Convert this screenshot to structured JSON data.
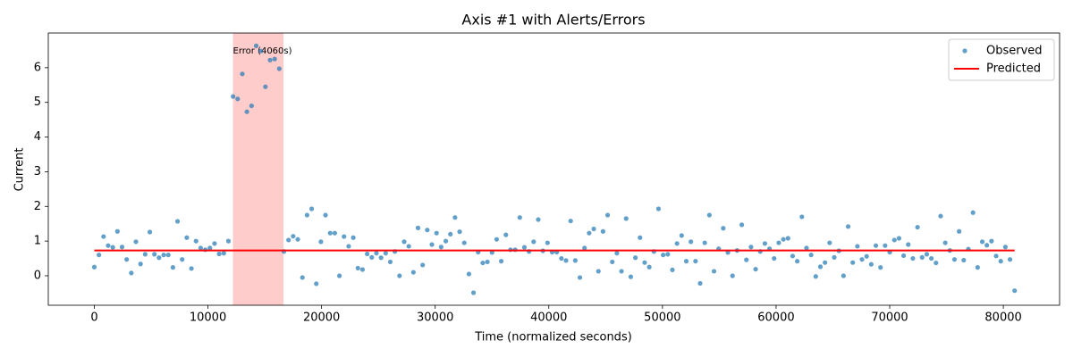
{
  "chart_data": {
    "type": "scatter-line",
    "title": "Axis #1 with Alerts/Errors",
    "x_label": "Time (normalized seconds)",
    "y_label": "Current",
    "xlim": [
      -4050,
      84950
    ],
    "ylim": [
      -0.85,
      7.0
    ],
    "xticks": [
      0,
      10000,
      20000,
      30000,
      40000,
      50000,
      60000,
      70000,
      80000
    ],
    "yticks": [
      0,
      1,
      2,
      3,
      4,
      5,
      6
    ],
    "grid": false,
    "legend": "upper right",
    "error_region": {
      "x": [
        12200,
        16650
      ],
      "label": "Error (4060s)",
      "color": "#ff0000"
    },
    "series": [
      {
        "name": "Observed",
        "kind": "scatter",
        "color": "#1f77b4",
        "x": [
          0,
          407,
          814,
          1221,
          1628,
          2035,
          2442,
          2849,
          3256,
          3663,
          4070,
          4477,
          4884,
          5291,
          5698,
          6105,
          6512,
          6919,
          7326,
          7733,
          8140,
          8547,
          8954,
          9361,
          9768,
          10175,
          10582,
          10989,
          11396,
          11803,
          12210,
          12617,
          13024,
          13431,
          13838,
          14245,
          14652,
          15059,
          15466,
          15873,
          16280,
          16687,
          17094,
          17501,
          17908,
          18315,
          18722,
          19129,
          19536,
          19943,
          20350,
          20757,
          21164,
          21571,
          21978,
          22385,
          22792,
          23199,
          23606,
          24013,
          24420,
          24827,
          25234,
          25641,
          26048,
          26455,
          26862,
          27269,
          27676,
          28083,
          28490,
          28897,
          29304,
          29711,
          30118,
          30525,
          30932,
          31339,
          31746,
          32153,
          32560,
          32967,
          33374,
          33781,
          34188,
          34595,
          35002,
          35409,
          35816,
          36223,
          36630,
          37037,
          37444,
          37851,
          38258,
          38665,
          39072,
          39479,
          39886,
          40293,
          40700,
          41107,
          41514,
          41921,
          42328,
          42735,
          43142,
          43549,
          43956,
          44363,
          44770,
          45177,
          45584,
          45991,
          46398,
          46805,
          47212,
          47619,
          48026,
          48433,
          48840,
          49247,
          49654,
          50061,
          50468,
          50875,
          51282,
          51689,
          52096,
          52503,
          52910,
          53317,
          53724,
          54131,
          54538,
          54945,
          55352,
          55759,
          56166,
          56573,
          56980,
          57387,
          57794,
          58201,
          58608,
          59015,
          59422,
          59829,
          60236,
          60643,
          61050,
          61457,
          61864,
          62271,
          62678,
          63085,
          63492,
          63899,
          64306,
          64713,
          65120,
          65527,
          65934,
          66341,
          66748,
          67155,
          67562,
          67969,
          68376,
          68783,
          69190,
          69597,
          70004,
          70411,
          70818,
          71225,
          71632,
          72039,
          72446,
          72853,
          73260,
          73667,
          74074,
          74481,
          74888,
          75295,
          75702,
          76109,
          76516,
          76923,
          77330,
          77737,
          78144,
          78551,
          78958,
          79365,
          79772,
          80179,
          80586,
          80993
        ],
        "values": [
          0.25,
          0.6,
          1.13,
          0.87,
          0.82,
          1.28,
          0.83,
          0.47,
          0.08,
          0.98,
          0.34,
          0.62,
          1.26,
          0.62,
          0.52,
          0.6,
          0.6,
          0.24,
          1.57,
          0.47,
          1.1,
          0.21,
          1.0,
          0.8,
          0.75,
          0.8,
          0.93,
          0.63,
          0.65,
          1.0,
          5.17,
          5.1,
          5.82,
          4.73,
          4.9,
          6.63,
          6.48,
          5.45,
          6.22,
          6.25,
          5.97,
          0.7,
          1.03,
          1.14,
          1.05,
          -0.05,
          1.75,
          1.93,
          -0.23,
          0.98,
          1.75,
          1.23,
          1.23,
          0.0,
          1.13,
          0.85,
          1.1,
          0.22,
          0.18,
          0.63,
          0.53,
          0.65,
          0.52,
          0.65,
          0.4,
          0.7,
          0.0,
          0.98,
          0.85,
          0.1,
          1.38,
          0.31,
          1.32,
          0.9,
          1.23,
          0.83,
          1.0,
          1.2,
          1.68,
          1.27,
          0.95,
          0.05,
          -0.49,
          0.68,
          0.37,
          0.4,
          0.67,
          1.05,
          0.42,
          1.18,
          0.75,
          0.75,
          1.68,
          0.82,
          0.7,
          0.98,
          1.62,
          0.72,
          0.95,
          0.68,
          0.68,
          0.5,
          0.44,
          1.58,
          0.44,
          -0.05,
          0.8,
          1.23,
          1.35,
          0.13,
          1.28,
          1.75,
          0.4,
          0.65,
          0.13,
          1.65,
          -0.03,
          0.52,
          1.1,
          0.38,
          0.25,
          0.7,
          1.93,
          0.6,
          0.62,
          0.17,
          0.93,
          1.16,
          0.42,
          0.98,
          0.42,
          -0.22,
          0.95,
          1.75,
          0.13,
          0.78,
          1.37,
          0.67,
          0.0,
          0.73,
          1.47,
          0.46,
          0.83,
          0.19,
          0.7,
          0.93,
          0.78,
          0.5,
          0.95,
          1.05,
          1.08,
          0.57,
          0.42,
          1.7,
          0.8,
          0.6,
          -0.02,
          0.26,
          0.38,
          0.95,
          0.53,
          0.72,
          0.0,
          1.42,
          0.38,
          0.85,
          0.47,
          0.56,
          0.33,
          0.87,
          0.24,
          0.87,
          0.68,
          1.03,
          1.08,
          0.58,
          0.9,
          0.5,
          1.4,
          0.53,
          0.62,
          0.5,
          0.37,
          1.72,
          0.95,
          0.73,
          0.47,
          1.28,
          0.45,
          0.77,
          1.82,
          0.24,
          0.98,
          0.88,
          1.0,
          0.57,
          0.42,
          0.83,
          0.47,
          -0.43
        ]
      },
      {
        "name": "Predicted",
        "kind": "line",
        "color": "#ff0000",
        "x": [
          0,
          80993
        ],
        "values": [
          0.73,
          0.73
        ]
      }
    ]
  }
}
